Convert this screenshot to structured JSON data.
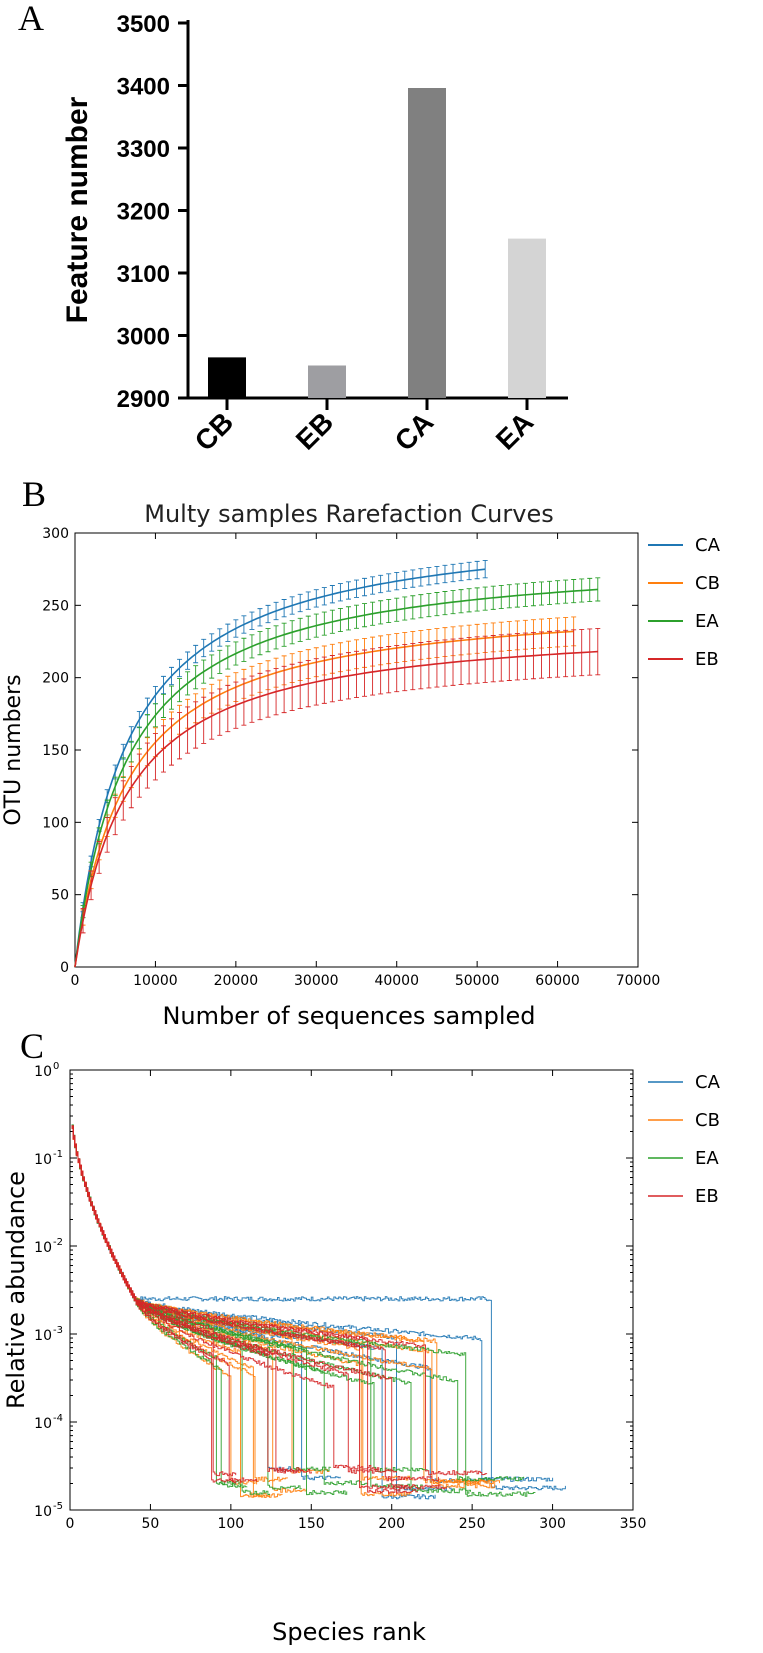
{
  "panels": {
    "a": "A",
    "b": "B",
    "c": "C"
  },
  "chart_data": [
    {
      "type": "bar",
      "ylabel": "Feature number",
      "categories": [
        "CB",
        "EB",
        "CA",
        "EA"
      ],
      "values": [
        2965,
        2952,
        3396,
        3155
      ],
      "colors": [
        "#000000",
        "#9e9ea2",
        "#808080",
        "#d4d4d4"
      ],
      "ylim": [
        2900,
        3500
      ],
      "yticks": [
        "2900",
        "3000",
        "3100",
        "3200",
        "3300",
        "3400",
        "3500"
      ]
    },
    {
      "type": "line",
      "title": "Multy samples Rarefaction Curves",
      "xlabel": "Number of sequences sampled",
      "ylabel": "OTU numbers",
      "xlim": [
        0,
        70000
      ],
      "ylim": [
        0,
        300
      ],
      "xticks": [
        "0",
        "10000",
        "20000",
        "30000",
        "40000",
        "50000",
        "60000",
        "70000"
      ],
      "yticks": [
        "0",
        "50",
        "100",
        "150",
        "200",
        "250",
        "300"
      ],
      "series": [
        {
          "name": "CA",
          "color": "#1f77b4",
          "xmax": 51000,
          "final": 275,
          "err": 6
        },
        {
          "name": "CB",
          "color": "#ff7f0e",
          "xmax": 62000,
          "final": 232,
          "err": 10
        },
        {
          "name": "EA",
          "color": "#2ca02c",
          "xmax": 65000,
          "final": 261,
          "err": 8
        },
        {
          "name": "EB",
          "color": "#d62728",
          "xmax": 65000,
          "final": 218,
          "err": 16
        }
      ]
    },
    {
      "type": "line",
      "xlabel": "Species rank",
      "ylabel": "Relative abundance",
      "xlim": [
        0,
        350
      ],
      "ylim_log10": [
        -5,
        0
      ],
      "xticks": [
        "0",
        "50",
        "100",
        "150",
        "200",
        "250",
        "300",
        "350"
      ],
      "yticks": [
        {
          "base": "10",
          "exp": "-5"
        },
        {
          "base": "10",
          "exp": "-4"
        },
        {
          "base": "10",
          "exp": "-3"
        },
        {
          "base": "10",
          "exp": "-2"
        },
        {
          "base": "10",
          "exp": "-1"
        },
        {
          "base": "10",
          "exp": "0"
        }
      ],
      "series": [
        {
          "name": "CA",
          "color": "#1f77b4"
        },
        {
          "name": "CB",
          "color": "#ff7f0e"
        },
        {
          "name": "EA",
          "color": "#2ca02c"
        },
        {
          "name": "EB",
          "color": "#d62728"
        }
      ]
    }
  ]
}
